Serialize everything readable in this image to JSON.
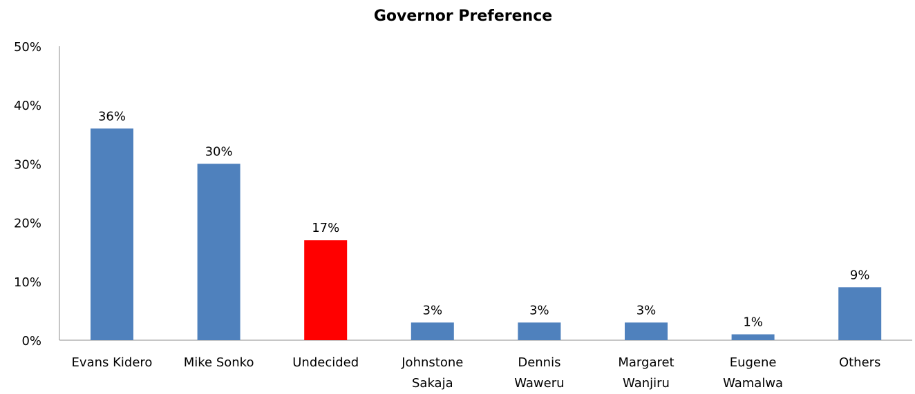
{
  "chart_data": {
    "type": "bar",
    "title": "Governor  Preference",
    "xlabel": "",
    "ylabel": "",
    "ylim": [
      0,
      50
    ],
    "y_ticks": [
      "0%",
      "10%",
      "20%",
      "30%",
      "40%",
      "50%"
    ],
    "y_tick_values": [
      0,
      10,
      20,
      30,
      40,
      50
    ],
    "grid": false,
    "legend": "none",
    "categories": [
      [
        "Evans Kidero"
      ],
      [
        "Mike Sonko"
      ],
      [
        "Undecided"
      ],
      [
        "Johnstone",
        "Sakaja"
      ],
      [
        "Dennis",
        "Waweru"
      ],
      [
        "Margaret",
        "Wanjiru"
      ],
      [
        "Eugene",
        "Wamalwa"
      ],
      [
        "Others"
      ]
    ],
    "values": [
      36,
      30,
      17,
      3,
      3,
      3,
      1,
      9
    ],
    "value_labels": [
      "36%",
      "30%",
      "17%",
      "3%",
      "3%",
      "3%",
      "1%",
      "9%"
    ],
    "colors": [
      "#4f81bd",
      "#4f81bd",
      "#ff0000",
      "#4f81bd",
      "#4f81bd",
      "#4f81bd",
      "#4f81bd",
      "#4f81bd"
    ]
  }
}
